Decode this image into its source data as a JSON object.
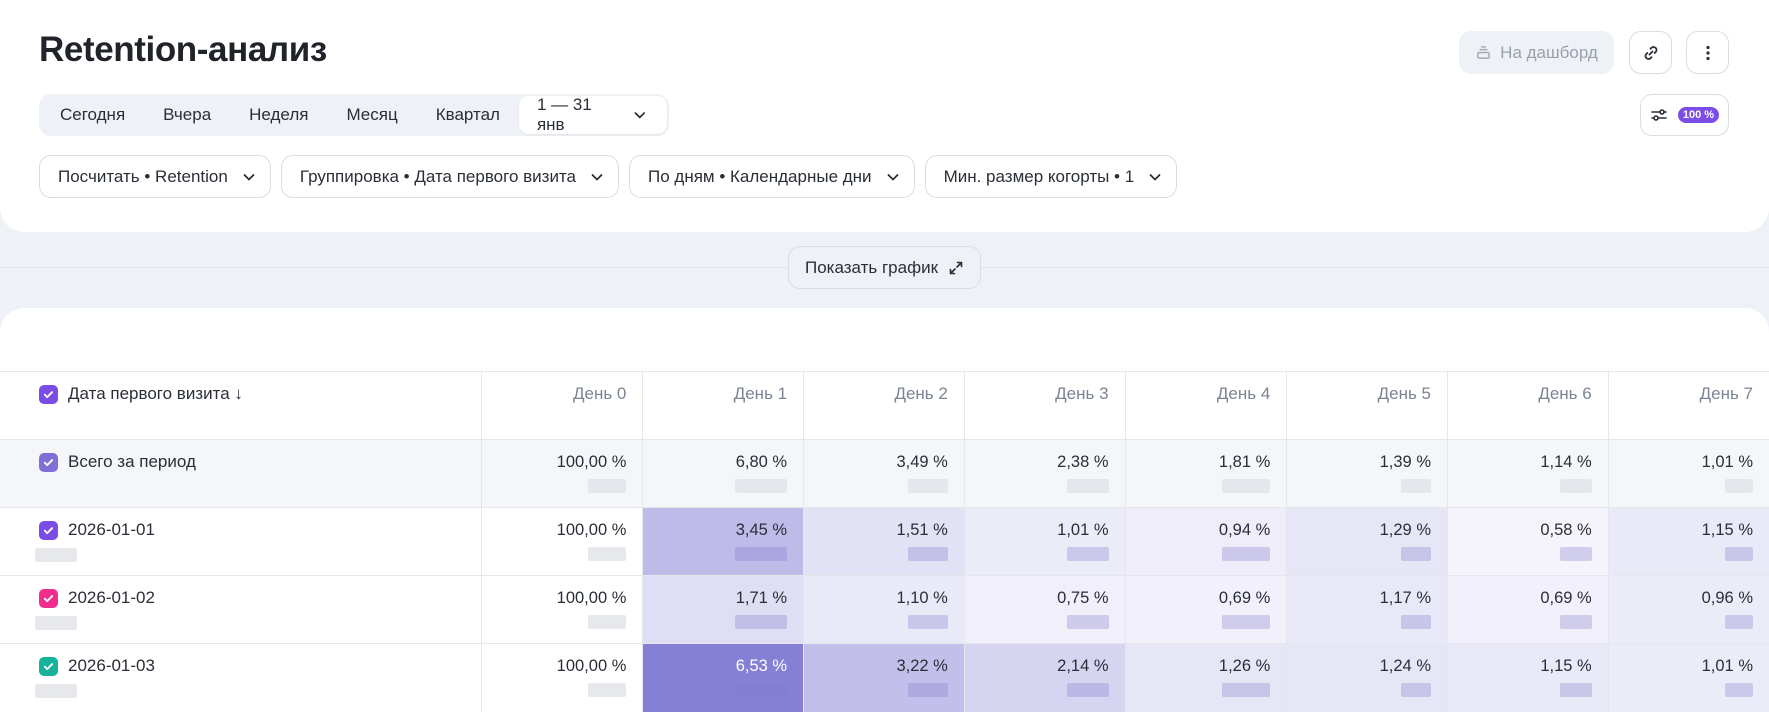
{
  "header": {
    "title": "Retention-анализ",
    "dashboard_label": "На дашборд",
    "settings_badge": "100 %"
  },
  "period": {
    "items": [
      "Сегодня",
      "Вчера",
      "Неделя",
      "Месяц",
      "Квартал"
    ],
    "selected": "1 — 31 янв"
  },
  "filters": [
    "Посчитать • Retention",
    "Группировка • Дата первого визита",
    "По дням • Календарные дни",
    "Мин. размер когорты • 1"
  ],
  "show_chart_label": "Показать график",
  "table": {
    "first_header": "Дата первого визита ↓",
    "columns": [
      "День 0",
      "День 1",
      "День 2",
      "День 3",
      "День 4",
      "День 5",
      "День 6",
      "День 7"
    ],
    "rows": [
      {
        "label": "Всего за период",
        "checkbox_color": "#7f6fd6",
        "total": true,
        "values": [
          "100,00 %",
          "6,80 %",
          "3,49 %",
          "2,38 %",
          "1,81 %",
          "1,39 %",
          "1,14 %",
          "1,01 %"
        ]
      },
      {
        "label": "2026-01-01",
        "checkbox_color": "#7a4ee6",
        "values": [
          "100,00 %",
          "3,45 %",
          "1,51 %",
          "1,01 %",
          "0,94 %",
          "1,29 %",
          "0,58 %",
          "1,15 %"
        ]
      },
      {
        "label": "2026-01-02",
        "checkbox_color": "#f02d8c",
        "values": [
          "100,00 %",
          "1,71 %",
          "1,10 %",
          "0,75 %",
          "0,69 %",
          "1,17 %",
          "0,69 %",
          "0,96 %"
        ]
      },
      {
        "label": "2026-01-03",
        "checkbox_color": "#16b39a",
        "values": [
          "100,00 %",
          "6,53 %",
          "3,22 %",
          "2,14 %",
          "1,26 %",
          "1,24 %",
          "1,15 %",
          "1,01 %"
        ]
      }
    ],
    "heat_color": "#7b75d3"
  }
}
